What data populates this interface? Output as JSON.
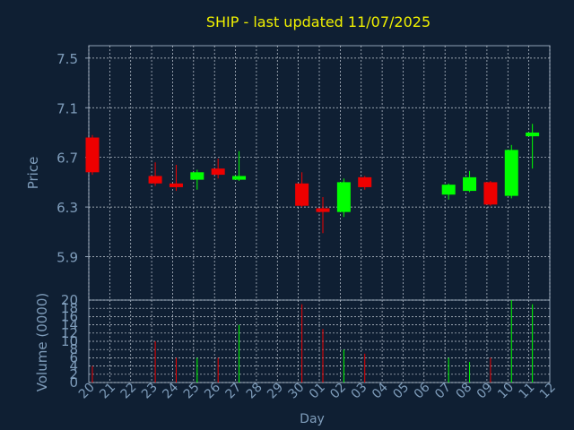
{
  "chart_data": {
    "type": "candlestick",
    "title": "SHIP - last updated 11/07/2025",
    "xlabel": "Day",
    "price_panel": {
      "ylabel": "Price",
      "yticks": [
        "5.9",
        "6.3",
        "6.7",
        "7.1",
        "7.5"
      ],
      "ylim": [
        5.55,
        7.6
      ]
    },
    "volume_panel": {
      "ylabel": "Volume (0000)",
      "yticks": [
        "0",
        "2",
        "4",
        "6",
        "8",
        "10",
        "12",
        "14",
        "16",
        "18",
        "20"
      ],
      "ylim": [
        0,
        20
      ]
    },
    "x_tick_labels": [
      "20",
      "21",
      "22",
      "23",
      "24",
      "25",
      "26",
      "27",
      "28",
      "29",
      "30",
      "01",
      "02",
      "03",
      "04",
      "05",
      "06",
      "07",
      "08",
      "09",
      "10",
      "11",
      "12"
    ],
    "candles": [
      {
        "x": 0,
        "open": 6.86,
        "close": 6.58,
        "high": 6.88,
        "low": 6.56,
        "volume": 4
      },
      {
        "x": 3,
        "open": 6.55,
        "close": 6.49,
        "high": 6.66,
        "low": 6.47,
        "volume": 10
      },
      {
        "x": 4,
        "open": 6.49,
        "close": 6.46,
        "high": 6.64,
        "low": 6.43,
        "volume": 6
      },
      {
        "x": 5,
        "open": 6.52,
        "close": 6.58,
        "high": 6.6,
        "low": 6.44,
        "volume": 6
      },
      {
        "x": 6,
        "open": 6.61,
        "close": 6.56,
        "high": 6.69,
        "low": 6.53,
        "volume": 6
      },
      {
        "x": 7,
        "open": 6.52,
        "close": 6.55,
        "high": 6.75,
        "low": 6.51,
        "volume": 14
      },
      {
        "x": 10,
        "open": 6.49,
        "close": 6.31,
        "high": 6.58,
        "low": 6.3,
        "volume": 19
      },
      {
        "x": 11,
        "open": 6.29,
        "close": 6.26,
        "high": 6.38,
        "low": 6.09,
        "volume": 13
      },
      {
        "x": 12,
        "open": 6.26,
        "close": 6.5,
        "high": 6.53,
        "low": 6.22,
        "volume": 8
      },
      {
        "x": 13,
        "open": 6.54,
        "close": 6.46,
        "high": 6.55,
        "low": 6.44,
        "volume": 7
      },
      {
        "x": 17,
        "open": 6.4,
        "close": 6.48,
        "high": 6.49,
        "low": 6.36,
        "volume": 6
      },
      {
        "x": 18,
        "open": 6.43,
        "close": 6.54,
        "high": 6.59,
        "low": 6.42,
        "volume": 5
      },
      {
        "x": 19,
        "open": 6.5,
        "close": 6.32,
        "high": 6.51,
        "low": 6.31,
        "volume": 6
      },
      {
        "x": 20,
        "open": 6.39,
        "close": 6.76,
        "high": 6.8,
        "low": 6.37,
        "volume": 20
      },
      {
        "x": 21,
        "open": 6.87,
        "close": 6.9,
        "high": 6.97,
        "low": 6.61,
        "volume": 19
      }
    ],
    "grid": true,
    "colors": {
      "background": "#0f1f33",
      "axis": "#8fa0b5",
      "grid": "#c8d0da",
      "title": "#f0f000",
      "label": "#7f9dbb",
      "up": "#00ff00",
      "down": "#ee0000"
    }
  }
}
